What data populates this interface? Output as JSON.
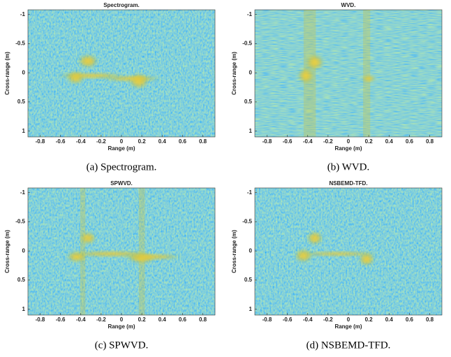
{
  "chart_data": [
    {
      "type": "image",
      "title": "Spectrogram.",
      "xlabel": "Range (m)",
      "ylabel": "Cross-range (m)",
      "caption": "(a)  Spectrogram.",
      "xlim": [
        -0.92,
        0.92
      ],
      "ylim": [
        -1.08,
        1.1
      ],
      "xticks": [
        -0.8,
        -0.6,
        -0.4,
        -0.2,
        0,
        0.2,
        0.4,
        0.6,
        0.8
      ],
      "yticks": [
        -1,
        -0.5,
        0,
        0.5,
        1
      ],
      "y_reversed": true
    },
    {
      "type": "image",
      "title": "WVD.",
      "xlabel": "Range (m)",
      "ylabel": "Cross-range (m)",
      "caption": "(b)  WVD.",
      "xlim": [
        -0.92,
        0.92
      ],
      "ylim": [
        -1.08,
        1.1
      ],
      "xticks": [
        -0.8,
        -0.6,
        -0.4,
        -0.2,
        0,
        0.2,
        0.4,
        0.6,
        0.8
      ],
      "yticks": [
        -1,
        -0.5,
        0,
        0.5,
        1
      ],
      "y_reversed": true
    },
    {
      "type": "image",
      "title": "SPWVD.",
      "xlabel": "Range (m)",
      "ylabel": "Cross-range (m)",
      "caption": "(c)  SPWVD.",
      "xlim": [
        -0.92,
        0.92
      ],
      "ylim": [
        -1.08,
        1.1
      ],
      "xticks": [
        -0.8,
        -0.6,
        -0.4,
        -0.2,
        0,
        0.2,
        0.4,
        0.6,
        0.8
      ],
      "yticks": [
        -1,
        -0.5,
        0,
        0.5,
        1
      ],
      "y_reversed": true
    },
    {
      "type": "image",
      "title": "NSBEMD-TFD.",
      "xlabel": "Range (m)",
      "ylabel": "Cross-range (m)",
      "caption": "(d)  NSBEMD-TFD.",
      "xlim": [
        -0.92,
        0.92
      ],
      "ylim": [
        -1.08,
        1.1
      ],
      "xticks": [
        -0.8,
        -0.6,
        -0.4,
        -0.2,
        0,
        0.2,
        0.4,
        0.6,
        0.8
      ],
      "yticks": [
        -1,
        -0.5,
        0,
        0.5,
        1
      ],
      "y_reversed": true
    }
  ]
}
